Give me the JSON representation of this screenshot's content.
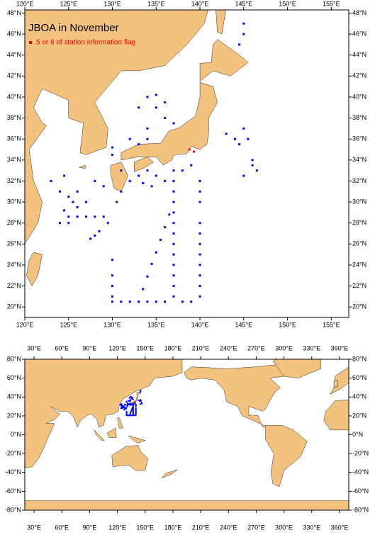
{
  "chart_data": [
    {
      "type": "map",
      "title": "JBOA in November",
      "land_color": "#f3c27e",
      "xlim": [
        120,
        157
      ],
      "ylim": [
        19,
        48.3
      ],
      "xticks": [
        {
          "value": 120,
          "label": "120°E"
        },
        {
          "value": 125,
          "label": "125°E"
        },
        {
          "value": 130,
          "label": "130°E"
        },
        {
          "value": 135,
          "label": "135°E"
        },
        {
          "value": 140,
          "label": "140°E"
        },
        {
          "value": 145,
          "label": "145°E"
        },
        {
          "value": 150,
          "label": "150°E"
        },
        {
          "value": 155,
          "label": "155°E"
        }
      ],
      "yticks": [
        {
          "value": 20,
          "label": "20°N"
        },
        {
          "value": 22,
          "label": "22°N"
        },
        {
          "value": 24,
          "label": "24°N"
        },
        {
          "value": 26,
          "label": "26°N"
        },
        {
          "value": 28,
          "label": "28°N"
        },
        {
          "value": 30,
          "label": "30°N"
        },
        {
          "value": 32,
          "label": "32°N"
        },
        {
          "value": 34,
          "label": "34°N"
        },
        {
          "value": 36,
          "label": "36°N"
        },
        {
          "value": 38,
          "label": "38°N"
        },
        {
          "value": 40,
          "label": "40°N"
        },
        {
          "value": 42,
          "label": "42°N"
        },
        {
          "value": 44,
          "label": "44°N"
        },
        {
          "value": 46,
          "label": "46°N"
        },
        {
          "value": 48,
          "label": "48°N"
        }
      ],
      "series": [
        {
          "color": "#0000ff",
          "lon": [
            137,
            137,
            137,
            137,
            137,
            137,
            137,
            137,
            137,
            137,
            137,
            137,
            137,
            140,
            140,
            140,
            140,
            140,
            140,
            140,
            140,
            140,
            140,
            140,
            130,
            130,
            130,
            130,
            130,
            131,
            132,
            133,
            134,
            135,
            136,
            138,
            139,
            133.5,
            134,
            134.5,
            135,
            135.5,
            136,
            136.5,
            143,
            144,
            144.5,
            145,
            145.5,
            146,
            146.5,
            145,
            146,
            129,
            128,
            127,
            126,
            125,
            131,
            130.5,
            129.5,
            128.5,
            127.5,
            128,
            132,
            133,
            134,
            135,
            136,
            138,
            139,
            131,
            134.5,
            133.5,
            134,
            135,
            135,
            136,
            133,
            134,
            136,
            137,
            134,
            132,
            130,
            130,
            133,
            123,
            124,
            125,
            126,
            127,
            124.5,
            125.5,
            126,
            124,
            128,
            129,
            125,
            124.5,
            145,
            145,
            144.5
          ],
          "lat": [
            21,
            22,
            23,
            24,
            25,
            26,
            27,
            28,
            29,
            30,
            31,
            32,
            33,
            21,
            22,
            23,
            24,
            25,
            26,
            27,
            28,
            30,
            31,
            32,
            20.5,
            21,
            22,
            23,
            24.5,
            20.5,
            20.5,
            20.5,
            20.5,
            20.5,
            20.5,
            20.5,
            20.5,
            21.7,
            22.9,
            24.1,
            25.2,
            26.4,
            27.6,
            28.8,
            36.5,
            36,
            35.5,
            37,
            36,
            34,
            33,
            32.5,
            33.5,
            28.6,
            28.6,
            28.6,
            28.6,
            28.6,
            31,
            30,
            28,
            27.2,
            26.5,
            26.8,
            32,
            32.5,
            33,
            32.5,
            32,
            33,
            33.5,
            33,
            31.5,
            31.8,
            40,
            39,
            40.2,
            39.5,
            39,
            37,
            38,
            37.5,
            36,
            36,
            35.2,
            34.5,
            35.5,
            32,
            31,
            30.5,
            31,
            30,
            32.5,
            30,
            29.5,
            28,
            32,
            31.5,
            28,
            29.2,
            47,
            46,
            45
          ]
        },
        {
          "name": "5 or 6 of station information flag",
          "color": "#ff0000",
          "lon": [
            138.8,
            139.3
          ],
          "lat": [
            35,
            34.8
          ]
        }
      ]
    },
    {
      "type": "map",
      "land_color": "#f3c27e",
      "xlim": [
        20,
        370
      ],
      "ylim": [
        -80,
        80
      ],
      "xticks": [
        {
          "value": 30,
          "label": "30°E"
        },
        {
          "value": 60,
          "label": "60°E"
        },
        {
          "value": 90,
          "label": "90°E"
        },
        {
          "value": 120,
          "label": "120°E"
        },
        {
          "value": 150,
          "label": "150°E"
        },
        {
          "value": 180,
          "label": "180°E"
        },
        {
          "value": 210,
          "label": "210°E"
        },
        {
          "value": 240,
          "label": "240°E"
        },
        {
          "value": 270,
          "label": "270°E"
        },
        {
          "value": 300,
          "label": "300°E"
        },
        {
          "value": 330,
          "label": "330°E"
        },
        {
          "value": 360,
          "label": "360°E"
        }
      ],
      "yticks": [
        {
          "value": -80,
          "label": "-80°N"
        },
        {
          "value": -60,
          "label": "-60°N"
        },
        {
          "value": -40,
          "label": "-40°N"
        },
        {
          "value": -20,
          "label": "-20°N"
        },
        {
          "value": 0,
          "label": "0°N"
        },
        {
          "value": 20,
          "label": "20°N"
        },
        {
          "value": 40,
          "label": "40°N"
        },
        {
          "value": 60,
          "label": "60°N"
        },
        {
          "value": 80,
          "label": "80°N"
        }
      ]
    }
  ]
}
